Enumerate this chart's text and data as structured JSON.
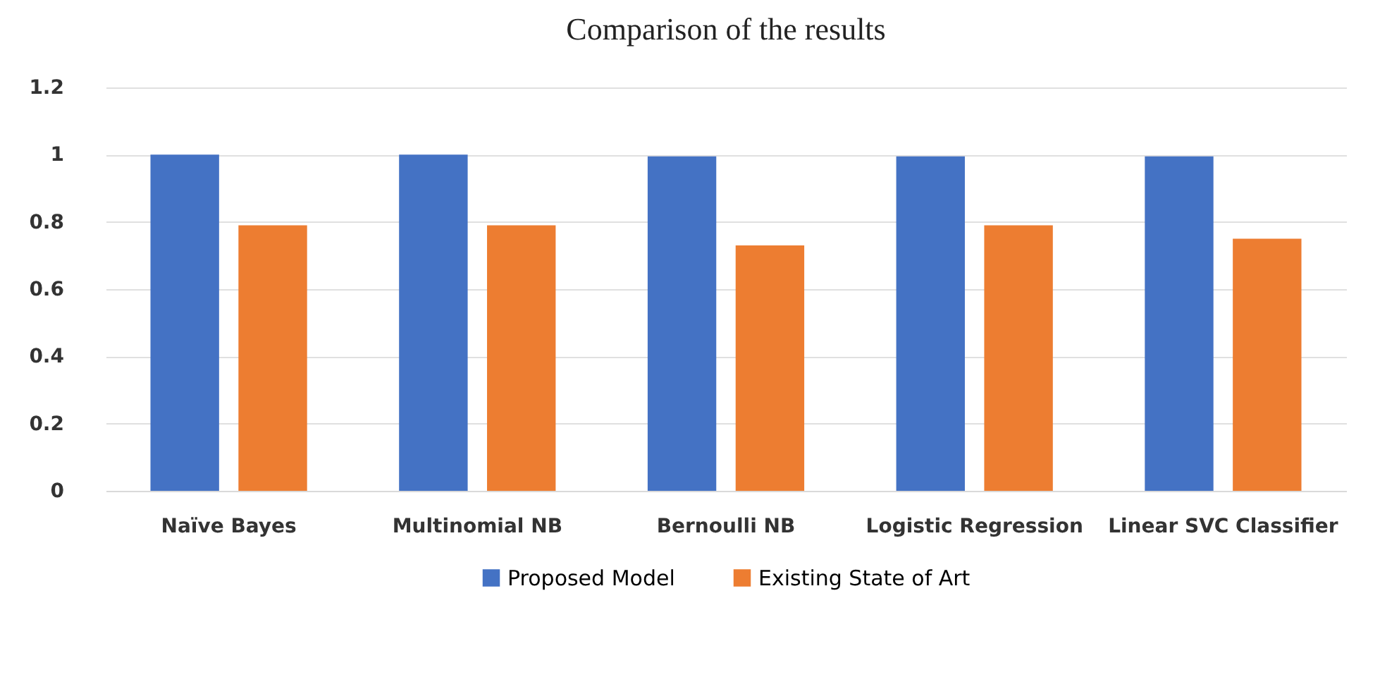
{
  "chart_data": {
    "type": "bar",
    "title": "Comparison of the results",
    "categories": [
      "Naïve Bayes",
      "Multinomial NB",
      "Bernoulli NB",
      "Logistic Regression",
      "Linear SVC Classifier"
    ],
    "series": [
      {
        "name": "Proposed Model",
        "color": "#4472c4",
        "values": [
          1.0,
          1.0,
          0.995,
          0.995,
          0.995
        ]
      },
      {
        "name": "Existing State of Art",
        "color": "#ed7d31",
        "values": [
          0.79,
          0.79,
          0.73,
          0.79,
          0.75
        ]
      }
    ],
    "ylim": [
      0,
      1.2
    ],
    "yticks": [
      0,
      0.2,
      0.4,
      0.6,
      0.8,
      1,
      1.2
    ],
    "grid": "y",
    "legend": "bottom"
  }
}
